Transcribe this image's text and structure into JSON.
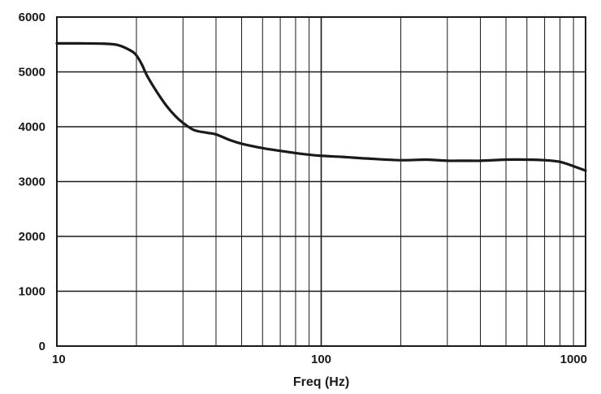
{
  "chart_data": {
    "type": "line",
    "title": "",
    "xlabel": "Freq (Hz)",
    "ylabel": "",
    "x_scale": "log",
    "xlim": [
      10,
      1000
    ],
    "ylim": [
      0,
      6000
    ],
    "grid": true,
    "x_tick_labels": [
      "10",
      "100",
      "1000"
    ],
    "x_tick_values": [
      10,
      100,
      1000
    ],
    "y_tick_labels": [
      "0",
      "1000",
      "2000",
      "3000",
      "4000",
      "5000",
      "6000"
    ],
    "y_tick_values": [
      0,
      1000,
      2000,
      3000,
      4000,
      5000,
      6000
    ],
    "series": [
      {
        "x": [
          10,
          12,
          15,
          17,
          19,
          20,
          21,
          22,
          24,
          26,
          28,
          30,
          33,
          37,
          40,
          45,
          50,
          60,
          70,
          80,
          90,
          100,
          120,
          150,
          200,
          250,
          300,
          350,
          400,
          500,
          600,
          700,
          800,
          900,
          1000
        ],
        "y": [
          5520,
          5520,
          5515,
          5490,
          5390,
          5300,
          5130,
          4920,
          4620,
          4380,
          4200,
          4070,
          3940,
          3890,
          3860,
          3760,
          3690,
          3610,
          3560,
          3520,
          3490,
          3470,
          3450,
          3420,
          3390,
          3400,
          3380,
          3380,
          3380,
          3400,
          3400,
          3390,
          3360,
          3280,
          3200
        ],
        "color": "#1a1a1a"
      }
    ]
  }
}
